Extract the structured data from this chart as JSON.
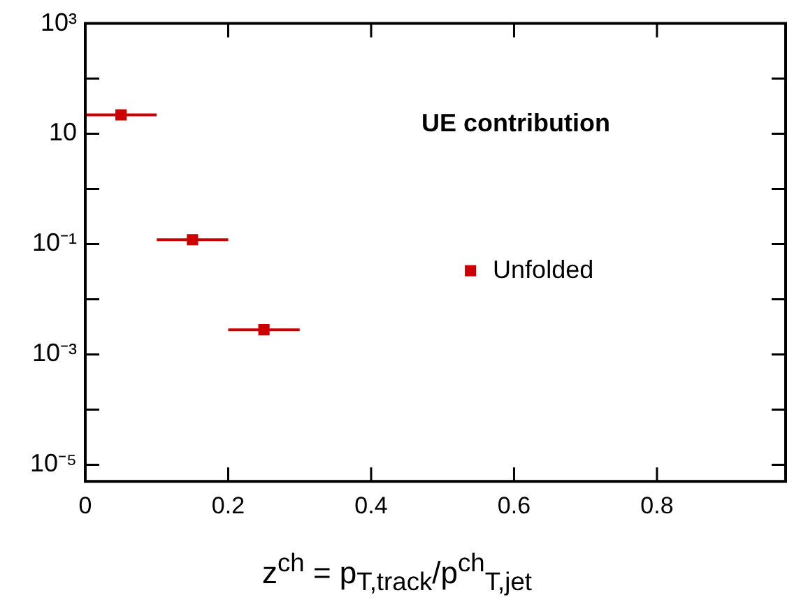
{
  "chart_data": {
    "type": "scatter",
    "xlabel": "z$^{ch}$ = p$_{T,track}$/p$^{ch}$$_{T,jet}$",
    "annotations": [
      "UE contribution"
    ],
    "x": [
      0.05,
      0.15,
      0.25
    ],
    "series": [
      {
        "name": "Unfolded",
        "color": "#cc0000",
        "values": [
          22,
          0.12,
          0.0028
        ],
        "xerrors": [
          0.05,
          0.05,
          0.05
        ]
      }
    ],
    "xlim": [
      0,
      0.98
    ],
    "xticks": [
      0,
      0.2,
      0.4,
      0.6,
      0.8
    ],
    "ylim": [
      5e-06,
      1000
    ],
    "yticks": [
      {
        "value": 1000,
        "label": "10³"
      },
      {
        "value": 100,
        "label": null
      },
      {
        "value": 10,
        "label": "10"
      },
      {
        "value": 1,
        "label": null
      },
      {
        "value": 0.1,
        "label": "10⁻¹"
      },
      {
        "value": 0.01,
        "label": null
      },
      {
        "value": 0.001,
        "label": "10⁻³"
      },
      {
        "value": 0.0001,
        "label": null
      },
      {
        "value": 1e-05,
        "label": "10⁻⁵"
      }
    ],
    "log": true,
    "grid": false,
    "legend": "right",
    "marker": "square"
  }
}
